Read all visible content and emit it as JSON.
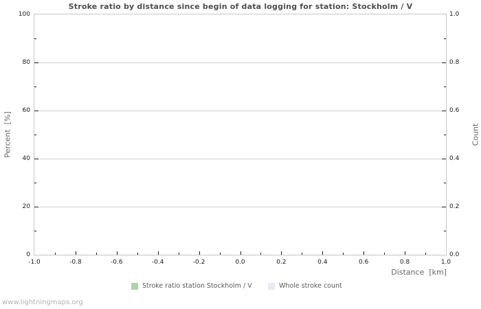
{
  "page": {
    "watermark": "www.lightningmaps.org"
  },
  "chart_data": {
    "type": "line",
    "title": "Stroke ratio by distance since begin of data logging for station: Stockholm / V",
    "xlabel": "Distance  [km]",
    "ylabel_left": "Percent  [%]",
    "ylabel_right": "Count",
    "x_axis": {
      "min": -1.0,
      "max": 1.0,
      "tick_values": [
        -1.0,
        -0.8,
        -0.6,
        -0.4,
        -0.2,
        0.0,
        0.2,
        0.4,
        0.6,
        0.8,
        1.0
      ],
      "tick_labels": [
        "-1.0",
        "-0.8",
        "-0.6",
        "-0.4",
        "-0.2",
        "0.0",
        "0.2",
        "0.4",
        "0.6",
        "0.8",
        "1.0"
      ],
      "minor_step": 0.1
    },
    "y_axis_left": {
      "min": 0,
      "max": 100,
      "tick_values": [
        0,
        20,
        40,
        60,
        80,
        100
      ],
      "tick_labels": [
        "0",
        "20",
        "40",
        "60",
        "80",
        "100"
      ],
      "minor_step": 10
    },
    "y_axis_right": {
      "min": 0.0,
      "max": 1.0,
      "tick_values": [
        0.0,
        0.2,
        0.4,
        0.6,
        0.8,
        1.0
      ],
      "tick_labels": [
        "0.0",
        "0.2",
        "0.4",
        "0.6",
        "0.8",
        "1.0"
      ],
      "minor_step": 0.1
    },
    "grid": "horizontal-only",
    "legend_position": "bottom",
    "legend": [
      {
        "label": "Stroke ratio station Stockholm / V",
        "color": "#a9d7a1"
      },
      {
        "label": "Whole stroke count",
        "color": "#e9e9f8"
      }
    ],
    "series": [
      {
        "name": "Stroke ratio station Stockholm / V",
        "color": "#a9d7a1",
        "points": []
      },
      {
        "name": "Whole stroke count",
        "color": "#e9e9f8",
        "points": []
      }
    ],
    "colors": {
      "gridline": "#d2d2d2",
      "plot_border": "#c6c6c6",
      "tick_mark": "#1a1a1a",
      "title_text": "#4d4d4d",
      "axis_text": "#666666",
      "tick_label_text": "#1a1a1a",
      "legend_text": "#595959",
      "watermark_text": "#b3b3b3",
      "background": "#ffffff"
    }
  }
}
